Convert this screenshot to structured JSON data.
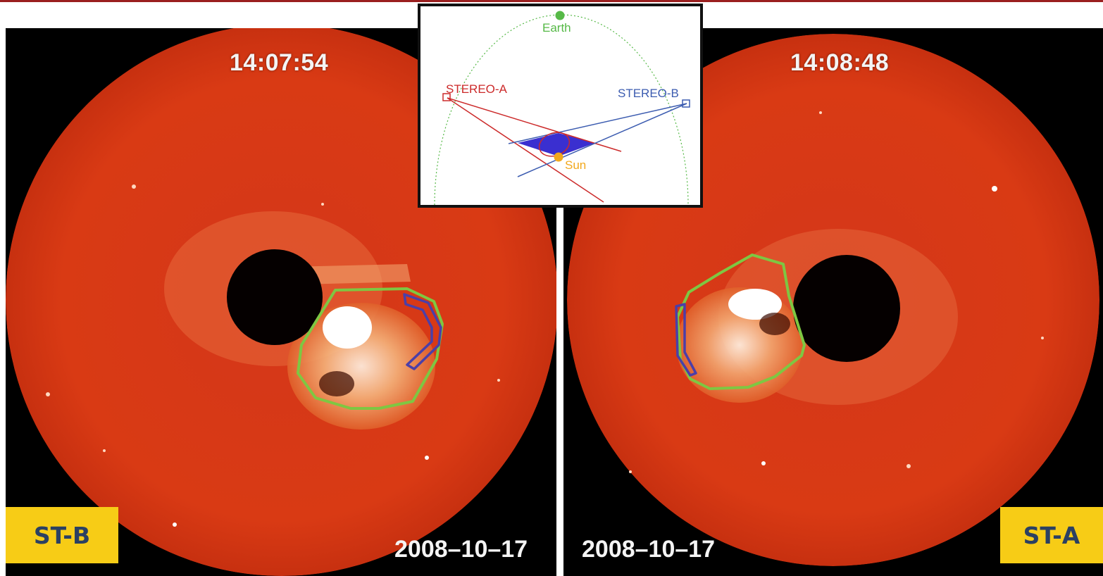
{
  "left_panel": {
    "time": "14:07:54",
    "date": "2008–10–17",
    "tag": "ST-B"
  },
  "right_panel": {
    "time": "14:08:48",
    "date": "2008–10–17",
    "tag": "ST-A"
  },
  "inset": {
    "earth_label": "Earth",
    "stereo_a_label": "STEREO-A",
    "stereo_b_label": "STEREO-B",
    "sun_label": "Sun"
  },
  "colors": {
    "coronagraph_red": "#d93a14",
    "outline_green": "#7ec742",
    "outline_blue": "#4b3fa8",
    "tag_yellow": "#f7cc16",
    "tag_text": "#2b4062",
    "earth_green": "#56b947",
    "stereo_a_red": "#cc2a2a",
    "stereo_b_blue": "#3c5cb0",
    "sun_orange": "#f2a81d",
    "overlap_fill": "#3a2fd0"
  }
}
